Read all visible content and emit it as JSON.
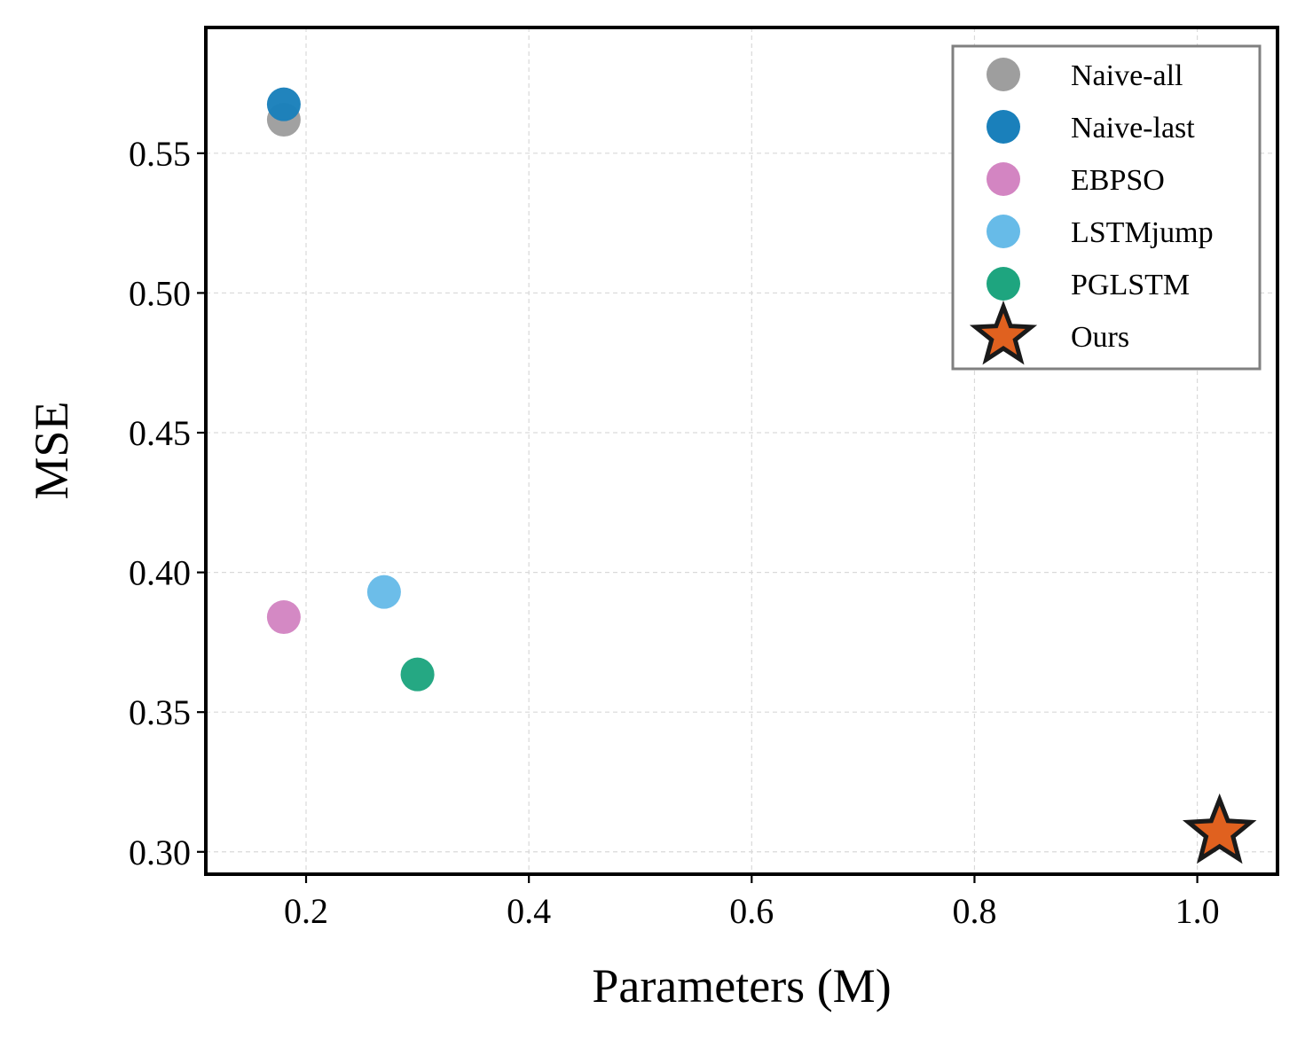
{
  "chart_data": {
    "type": "scatter",
    "title": "",
    "xlabel": "Parameters (M)",
    "ylabel": "MSE",
    "xlim": [
      0.11,
      1.072
    ],
    "ylim": [
      0.292,
      0.595
    ],
    "xticks": [
      0.2,
      0.4,
      0.6,
      0.8,
      1.0
    ],
    "xtick_labels": [
      "0.2",
      "0.4",
      "0.6",
      "0.8",
      "1.0"
    ],
    "yticks": [
      0.3,
      0.35,
      0.4,
      0.45,
      0.5,
      0.55
    ],
    "ytick_labels": [
      "0.30",
      "0.35",
      "0.40",
      "0.45",
      "0.50",
      "0.55"
    ],
    "grid": true,
    "legend_position": "top-right",
    "series": [
      {
        "name": "Naive-all",
        "x": 0.18,
        "y": 0.562,
        "color": "#9e9e9e",
        "marker": "circle"
      },
      {
        "name": "Naive-last",
        "x": 0.18,
        "y": 0.5675,
        "color": "#1a80bb",
        "marker": "circle"
      },
      {
        "name": "EBPSO",
        "x": 0.18,
        "y": 0.384,
        "color": "#d385c2",
        "marker": "circle"
      },
      {
        "name": "LSTMjump",
        "x": 0.27,
        "y": 0.393,
        "color": "#67bbe8",
        "marker": "circle"
      },
      {
        "name": "PGLSTM",
        "x": 0.3,
        "y": 0.3635,
        "color": "#1ea57f",
        "marker": "circle"
      },
      {
        "name": "Ours",
        "x": 1.02,
        "y": 0.307,
        "color": "#e0611f",
        "marker": "star"
      }
    ]
  }
}
